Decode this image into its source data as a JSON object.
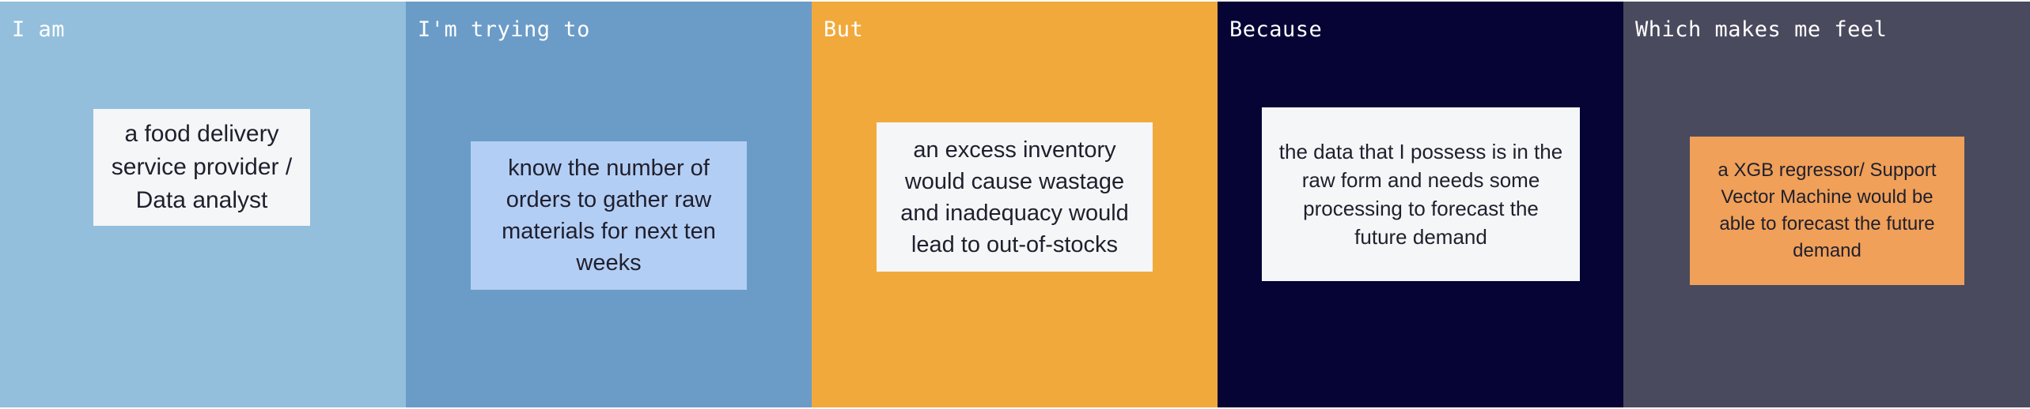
{
  "columns": [
    {
      "title": "I am",
      "bg": "#93bfdc",
      "title_color": "#ffffff"
    },
    {
      "title": "I'm trying to",
      "bg": "#6b9cc8",
      "title_color": "#ffffff"
    },
    {
      "title": "But",
      "bg": "#f2a93b",
      "title_color": "#ffffff"
    },
    {
      "title": "Because",
      "bg": "#050435",
      "title_color": "#ffffff"
    },
    {
      "title": "Which makes me feel",
      "bg": "#4a4a5e",
      "title_color": "#ffffff"
    }
  ],
  "notes": [
    {
      "text": "a food delivery service provider / Data analyst",
      "color": "#f5f6f7"
    },
    {
      "text": "know the number of orders to gather raw materials for next ten weeks",
      "color": "#b3cef4"
    },
    {
      "text": "an excess inventory would cause wastage and inadequacy would lead to out-of-stocks",
      "color": "#f5f6f7"
    },
    {
      "text": "the data that I possess is in the raw form and needs some processing to forecast the future demand",
      "color": "#f5f6f7"
    },
    {
      "text": "a XGB regressor/ Support Vector Machine would be able to forecast the future demand",
      "color": "#f0a058"
    }
  ]
}
